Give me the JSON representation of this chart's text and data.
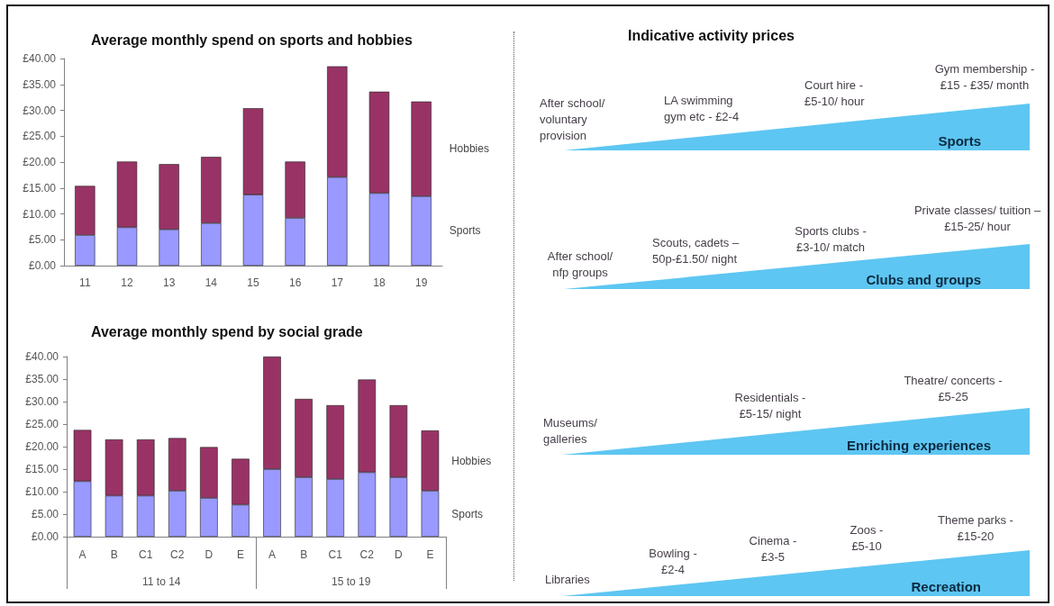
{
  "chart_data": [
    {
      "type": "bar",
      "title": "Average monthly spend on sports and hobbies",
      "categories": [
        "11",
        "12",
        "13",
        "14",
        "15",
        "16",
        "17",
        "18",
        "19"
      ],
      "stacked": true,
      "series": [
        {
          "name": "Sports",
          "color": "#9999ff",
          "values": [
            5.9,
            7.4,
            7.0,
            8.2,
            13.7,
            9.2,
            17.1,
            14.0,
            13.4
          ]
        },
        {
          "name": "Hobbies",
          "color": "#993366",
          "values": [
            9.5,
            12.7,
            12.6,
            12.8,
            16.7,
            10.9,
            21.4,
            19.6,
            18.3
          ]
        }
      ],
      "ylim": [
        0,
        40
      ],
      "yticks": [
        {
          "value": 0,
          "label": "£0.00"
        },
        {
          "value": 5,
          "label": "£5.00"
        },
        {
          "value": 10,
          "label": "£10.00"
        },
        {
          "value": 15,
          "label": "£15.00"
        },
        {
          "value": 20,
          "label": "£20.00"
        },
        {
          "value": 25,
          "label": "£25.00"
        },
        {
          "value": 30,
          "label": "£30.00"
        },
        {
          "value": 35,
          "label": "£35.00"
        },
        {
          "value": 40,
          "label": "£40.00"
        }
      ]
    },
    {
      "type": "bar",
      "title": "Average monthly spend by social grade",
      "categories": [
        "A",
        "B",
        "C1",
        "C2",
        "D",
        "E",
        "A",
        "B",
        "C1",
        "C2",
        "D",
        "E"
      ],
      "stacked": true,
      "series": [
        {
          "name": "Sports",
          "color": "#9999ff",
          "values": [
            12.3,
            9.1,
            9.1,
            10.2,
            8.6,
            7.1,
            15.0,
            13.2,
            12.8,
            14.3,
            13.2,
            10.2
          ]
        },
        {
          "name": "Hobbies",
          "color": "#993366",
          "values": [
            11.4,
            12.5,
            12.5,
            11.7,
            11.3,
            10.2,
            25.0,
            17.4,
            16.4,
            20.6,
            16.0,
            13.4
          ]
        }
      ],
      "ylim": [
        0,
        40
      ],
      "yticks": [
        {
          "value": 0,
          "label": "£0.00"
        },
        {
          "value": 5,
          "label": "£5.00"
        },
        {
          "value": 10,
          "label": "£10.00"
        },
        {
          "value": 15,
          "label": "£15.00"
        },
        {
          "value": 20,
          "label": "£20.00"
        },
        {
          "value": 25,
          "label": "£25.00"
        },
        {
          "value": 30,
          "label": "£30.00"
        },
        {
          "value": 35,
          "label": "£35.00"
        },
        {
          "value": 40,
          "label": "£40.00"
        }
      ],
      "annotations": [
        "11 to 14",
        "15 to 19"
      ]
    },
    {
      "type": "other",
      "title": "Indicative activity prices",
      "categories": [
        "Sports",
        "Clubs and groups",
        "Enriching experiences",
        "Recreation"
      ],
      "annotations": [
        "After school/ voluntary provision",
        "LA swimming gym etc - £2-4",
        "Court hire - £5-10/ hour",
        "Gym membership - £15 - £35/ month",
        "After school/ nfp groups",
        "Scouts, cadets – 50p-£1.50/ night",
        "Sports clubs - £3-10/ match",
        "Private classes/ tuition – £15-25/ hour",
        "Museums/ galleries",
        "Residentials - £5-15/ night",
        "Theatre/ concerts - £5-25",
        "Libraries",
        "Bowling - £2-4",
        "Cinema - £3-5",
        "Zoos - £5-10",
        "Theme parks - £15-20"
      ]
    }
  ]
}
